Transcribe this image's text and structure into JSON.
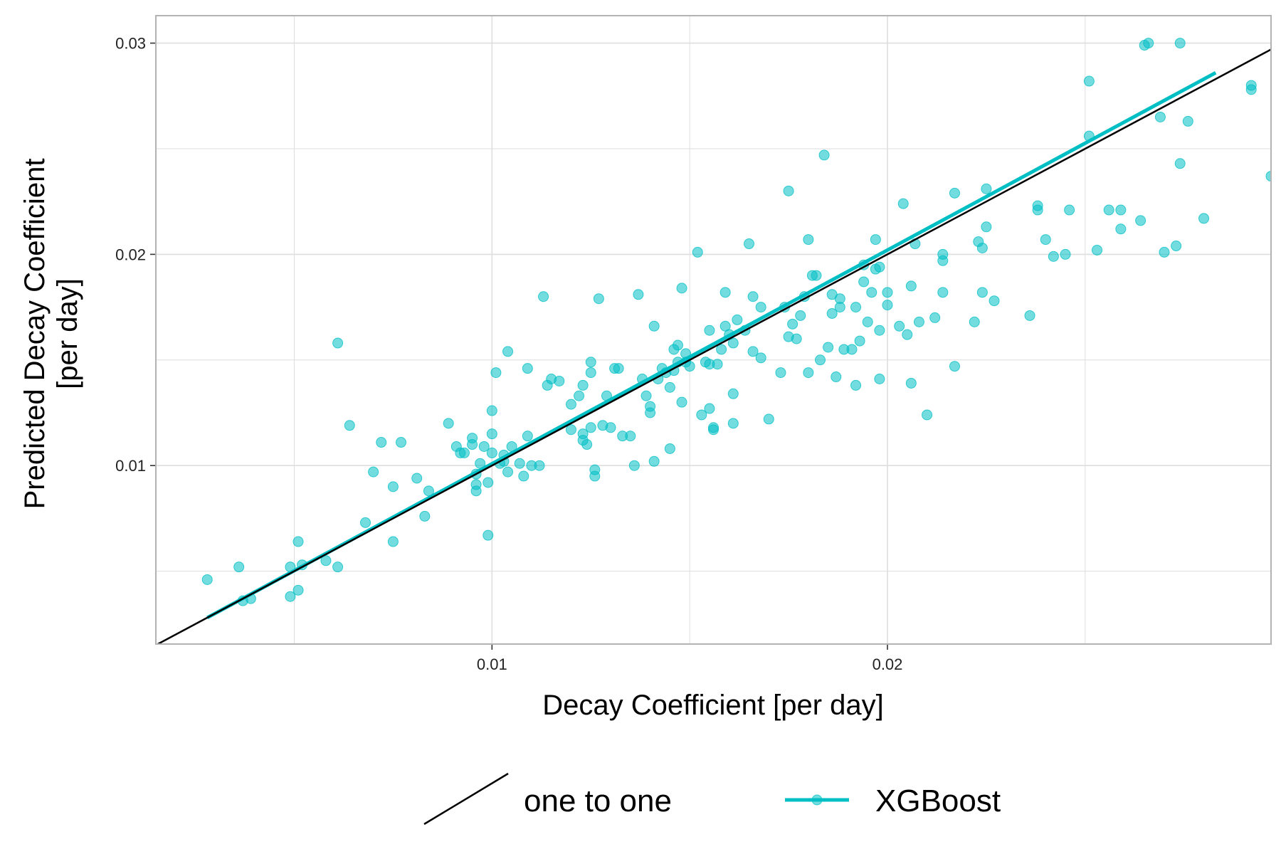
{
  "chart_data": {
    "type": "scatter",
    "xlabel": "Decay Coefficient [per day]",
    "ylabel": "Predicted Decay Coefficient\n[per day]",
    "xlim": [
      0.0015,
      0.0297
    ],
    "ylim": [
      0.00155,
      0.0313
    ],
    "x_ticks": [
      0.01,
      0.02
    ],
    "x_tick_labels": [
      "0.01",
      "0.02"
    ],
    "x_minor_ticks": [
      0.005,
      0.015,
      0.025
    ],
    "y_ticks": [
      0.01,
      0.02,
      0.03
    ],
    "y_tick_labels": [
      "0.01",
      "0.02",
      "0.03"
    ],
    "y_minor_ticks": [
      0.005,
      0.015,
      0.025
    ],
    "grid": true,
    "legend_position": "bottom",
    "colors": {
      "points": "#00BFC4",
      "fit_line": "#00BFC4",
      "one_to_one": "#000000",
      "grid": "#DEDEDE",
      "panel_border": "#B3B3B3"
    },
    "series": [
      {
        "name": "one to one",
        "kind": "line",
        "x": [
          0.0015,
          0.0297
        ],
        "y": [
          0.0015,
          0.0297
        ]
      },
      {
        "name": "XGBoost",
        "kind": "scatter+fit",
        "fit_line": {
          "x": [
            0.0028,
            0.0283
          ],
          "y": [
            0.0028,
            0.0286
          ]
        },
        "points": [
          [
            0.0028,
            0.0046
          ],
          [
            0.0036,
            0.0052
          ],
          [
            0.0037,
            0.0036
          ],
          [
            0.0039,
            0.0037
          ],
          [
            0.0049,
            0.0038
          ],
          [
            0.0049,
            0.0052
          ],
          [
            0.0051,
            0.0041
          ],
          [
            0.0051,
            0.0064
          ],
          [
            0.0052,
            0.0053
          ],
          [
            0.0058,
            0.0055
          ],
          [
            0.0061,
            0.0052
          ],
          [
            0.0061,
            0.0158
          ],
          [
            0.0064,
            0.0119
          ],
          [
            0.0068,
            0.0073
          ],
          [
            0.007,
            0.0097
          ],
          [
            0.0072,
            0.0111
          ],
          [
            0.0075,
            0.009
          ],
          [
            0.0075,
            0.0064
          ],
          [
            0.0077,
            0.0111
          ],
          [
            0.0081,
            0.0094
          ],
          [
            0.0083,
            0.0076
          ],
          [
            0.0084,
            0.0088
          ],
          [
            0.0089,
            0.012
          ],
          [
            0.0091,
            0.0109
          ],
          [
            0.0092,
            0.0106
          ],
          [
            0.0093,
            0.0106
          ],
          [
            0.0095,
            0.011
          ],
          [
            0.0095,
            0.0113
          ],
          [
            0.0096,
            0.0096
          ],
          [
            0.0096,
            0.0088
          ],
          [
            0.0096,
            0.0091
          ],
          [
            0.0097,
            0.0101
          ],
          [
            0.0098,
            0.0109
          ],
          [
            0.0099,
            0.0092
          ],
          [
            0.0099,
            0.0067
          ],
          [
            0.01,
            0.0106
          ],
          [
            0.01,
            0.0115
          ],
          [
            0.01,
            0.0126
          ],
          [
            0.0101,
            0.0144
          ],
          [
            0.0102,
            0.0101
          ],
          [
            0.0103,
            0.0105
          ],
          [
            0.0103,
            0.0102
          ],
          [
            0.0104,
            0.0154
          ],
          [
            0.0104,
            0.0097
          ],
          [
            0.0105,
            0.0109
          ],
          [
            0.0107,
            0.0101
          ],
          [
            0.0108,
            0.0095
          ],
          [
            0.0109,
            0.0114
          ],
          [
            0.0109,
            0.0146
          ],
          [
            0.011,
            0.01
          ],
          [
            0.0112,
            0.01
          ],
          [
            0.0113,
            0.018
          ],
          [
            0.0114,
            0.0138
          ],
          [
            0.0115,
            0.0141
          ],
          [
            0.0117,
            0.014
          ],
          [
            0.012,
            0.0129
          ],
          [
            0.012,
            0.0117
          ],
          [
            0.0122,
            0.0133
          ],
          [
            0.0123,
            0.0138
          ],
          [
            0.0123,
            0.0115
          ],
          [
            0.0123,
            0.0112
          ],
          [
            0.0124,
            0.011
          ],
          [
            0.0125,
            0.0144
          ],
          [
            0.0125,
            0.0149
          ],
          [
            0.0125,
            0.0118
          ],
          [
            0.0126,
            0.0098
          ],
          [
            0.0126,
            0.0095
          ],
          [
            0.0127,
            0.0179
          ],
          [
            0.0128,
            0.0119
          ],
          [
            0.0129,
            0.0133
          ],
          [
            0.013,
            0.0118
          ],
          [
            0.0131,
            0.0146
          ],
          [
            0.0132,
            0.0146
          ],
          [
            0.0133,
            0.0114
          ],
          [
            0.0135,
            0.0114
          ],
          [
            0.0136,
            0.01
          ],
          [
            0.0137,
            0.0181
          ],
          [
            0.0138,
            0.0141
          ],
          [
            0.0139,
            0.0133
          ],
          [
            0.014,
            0.0125
          ],
          [
            0.014,
            0.0128
          ],
          [
            0.0141,
            0.0166
          ],
          [
            0.0141,
            0.0102
          ],
          [
            0.0142,
            0.0141
          ],
          [
            0.0143,
            0.0146
          ],
          [
            0.0144,
            0.0144
          ],
          [
            0.0145,
            0.0137
          ],
          [
            0.0145,
            0.0108
          ],
          [
            0.0146,
            0.0145
          ],
          [
            0.0146,
            0.0155
          ],
          [
            0.0147,
            0.0149
          ],
          [
            0.0147,
            0.0157
          ],
          [
            0.0148,
            0.013
          ],
          [
            0.0148,
            0.0184
          ],
          [
            0.0149,
            0.0153
          ],
          [
            0.0149,
            0.0149
          ],
          [
            0.015,
            0.0147
          ],
          [
            0.0152,
            0.0201
          ],
          [
            0.0153,
            0.0124
          ],
          [
            0.0154,
            0.0149
          ],
          [
            0.0155,
            0.0127
          ],
          [
            0.0155,
            0.0148
          ],
          [
            0.0155,
            0.0164
          ],
          [
            0.0156,
            0.0118
          ],
          [
            0.0156,
            0.0117
          ],
          [
            0.0157,
            0.0148
          ],
          [
            0.0158,
            0.0155
          ],
          [
            0.0159,
            0.0182
          ],
          [
            0.0159,
            0.0166
          ],
          [
            0.016,
            0.0162
          ],
          [
            0.0161,
            0.0158
          ],
          [
            0.0161,
            0.012
          ],
          [
            0.0161,
            0.0134
          ],
          [
            0.0162,
            0.0169
          ],
          [
            0.0164,
            0.0164
          ],
          [
            0.0165,
            0.0205
          ],
          [
            0.0166,
            0.018
          ],
          [
            0.0166,
            0.0154
          ],
          [
            0.0168,
            0.0151
          ],
          [
            0.0168,
            0.0175
          ],
          [
            0.017,
            0.0122
          ],
          [
            0.0173,
            0.0144
          ],
          [
            0.0174,
            0.0175
          ],
          [
            0.0175,
            0.023
          ],
          [
            0.0175,
            0.0161
          ],
          [
            0.0176,
            0.0167
          ],
          [
            0.0177,
            0.016
          ],
          [
            0.0178,
            0.0171
          ],
          [
            0.0179,
            0.018
          ],
          [
            0.018,
            0.0144
          ],
          [
            0.018,
            0.0207
          ],
          [
            0.0181,
            0.019
          ],
          [
            0.0182,
            0.019
          ],
          [
            0.0183,
            0.015
          ],
          [
            0.0184,
            0.0247
          ],
          [
            0.0185,
            0.0156
          ],
          [
            0.0186,
            0.0172
          ],
          [
            0.0186,
            0.0181
          ],
          [
            0.0187,
            0.0142
          ],
          [
            0.0188,
            0.0175
          ],
          [
            0.0188,
            0.0179
          ],
          [
            0.0189,
            0.0155
          ],
          [
            0.0191,
            0.0155
          ],
          [
            0.0192,
            0.0138
          ],
          [
            0.0192,
            0.0175
          ],
          [
            0.0193,
            0.0159
          ],
          [
            0.0194,
            0.0187
          ],
          [
            0.0194,
            0.0195
          ],
          [
            0.0195,
            0.0168
          ],
          [
            0.0196,
            0.0182
          ],
          [
            0.0197,
            0.0193
          ],
          [
            0.0197,
            0.0207
          ],
          [
            0.0198,
            0.0164
          ],
          [
            0.0198,
            0.0194
          ],
          [
            0.0198,
            0.0141
          ],
          [
            0.02,
            0.0176
          ],
          [
            0.02,
            0.0182
          ],
          [
            0.0203,
            0.0166
          ],
          [
            0.0204,
            0.0224
          ],
          [
            0.0205,
            0.0162
          ],
          [
            0.0206,
            0.0139
          ],
          [
            0.0206,
            0.0185
          ],
          [
            0.0207,
            0.0205
          ],
          [
            0.0208,
            0.0168
          ],
          [
            0.021,
            0.0124
          ],
          [
            0.0212,
            0.017
          ],
          [
            0.0214,
            0.02
          ],
          [
            0.0214,
            0.0197
          ],
          [
            0.0214,
            0.0182
          ],
          [
            0.0217,
            0.0147
          ],
          [
            0.0217,
            0.0229
          ],
          [
            0.0222,
            0.0168
          ],
          [
            0.0223,
            0.0206
          ],
          [
            0.0224,
            0.0182
          ],
          [
            0.0224,
            0.0203
          ],
          [
            0.0225,
            0.0231
          ],
          [
            0.0225,
            0.0213
          ],
          [
            0.0227,
            0.0178
          ],
          [
            0.0236,
            0.0171
          ],
          [
            0.0238,
            0.0221
          ],
          [
            0.0238,
            0.0223
          ],
          [
            0.024,
            0.0207
          ],
          [
            0.0242,
            0.0199
          ],
          [
            0.0245,
            0.02
          ],
          [
            0.0246,
            0.0221
          ],
          [
            0.0251,
            0.0282
          ],
          [
            0.0251,
            0.0256
          ],
          [
            0.0253,
            0.0202
          ],
          [
            0.0256,
            0.0221
          ],
          [
            0.0259,
            0.0221
          ],
          [
            0.0259,
            0.0212
          ],
          [
            0.0264,
            0.0216
          ],
          [
            0.0265,
            0.0299
          ],
          [
            0.0266,
            0.03
          ],
          [
            0.0269,
            0.0265
          ],
          [
            0.027,
            0.0201
          ],
          [
            0.0273,
            0.0204
          ],
          [
            0.0274,
            0.03
          ],
          [
            0.0274,
            0.0243
          ],
          [
            0.0276,
            0.0263
          ],
          [
            0.028,
            0.0217
          ],
          [
            0.0292,
            0.0278
          ],
          [
            0.0292,
            0.028
          ],
          [
            0.0297,
            0.0237
          ]
        ]
      }
    ]
  }
}
